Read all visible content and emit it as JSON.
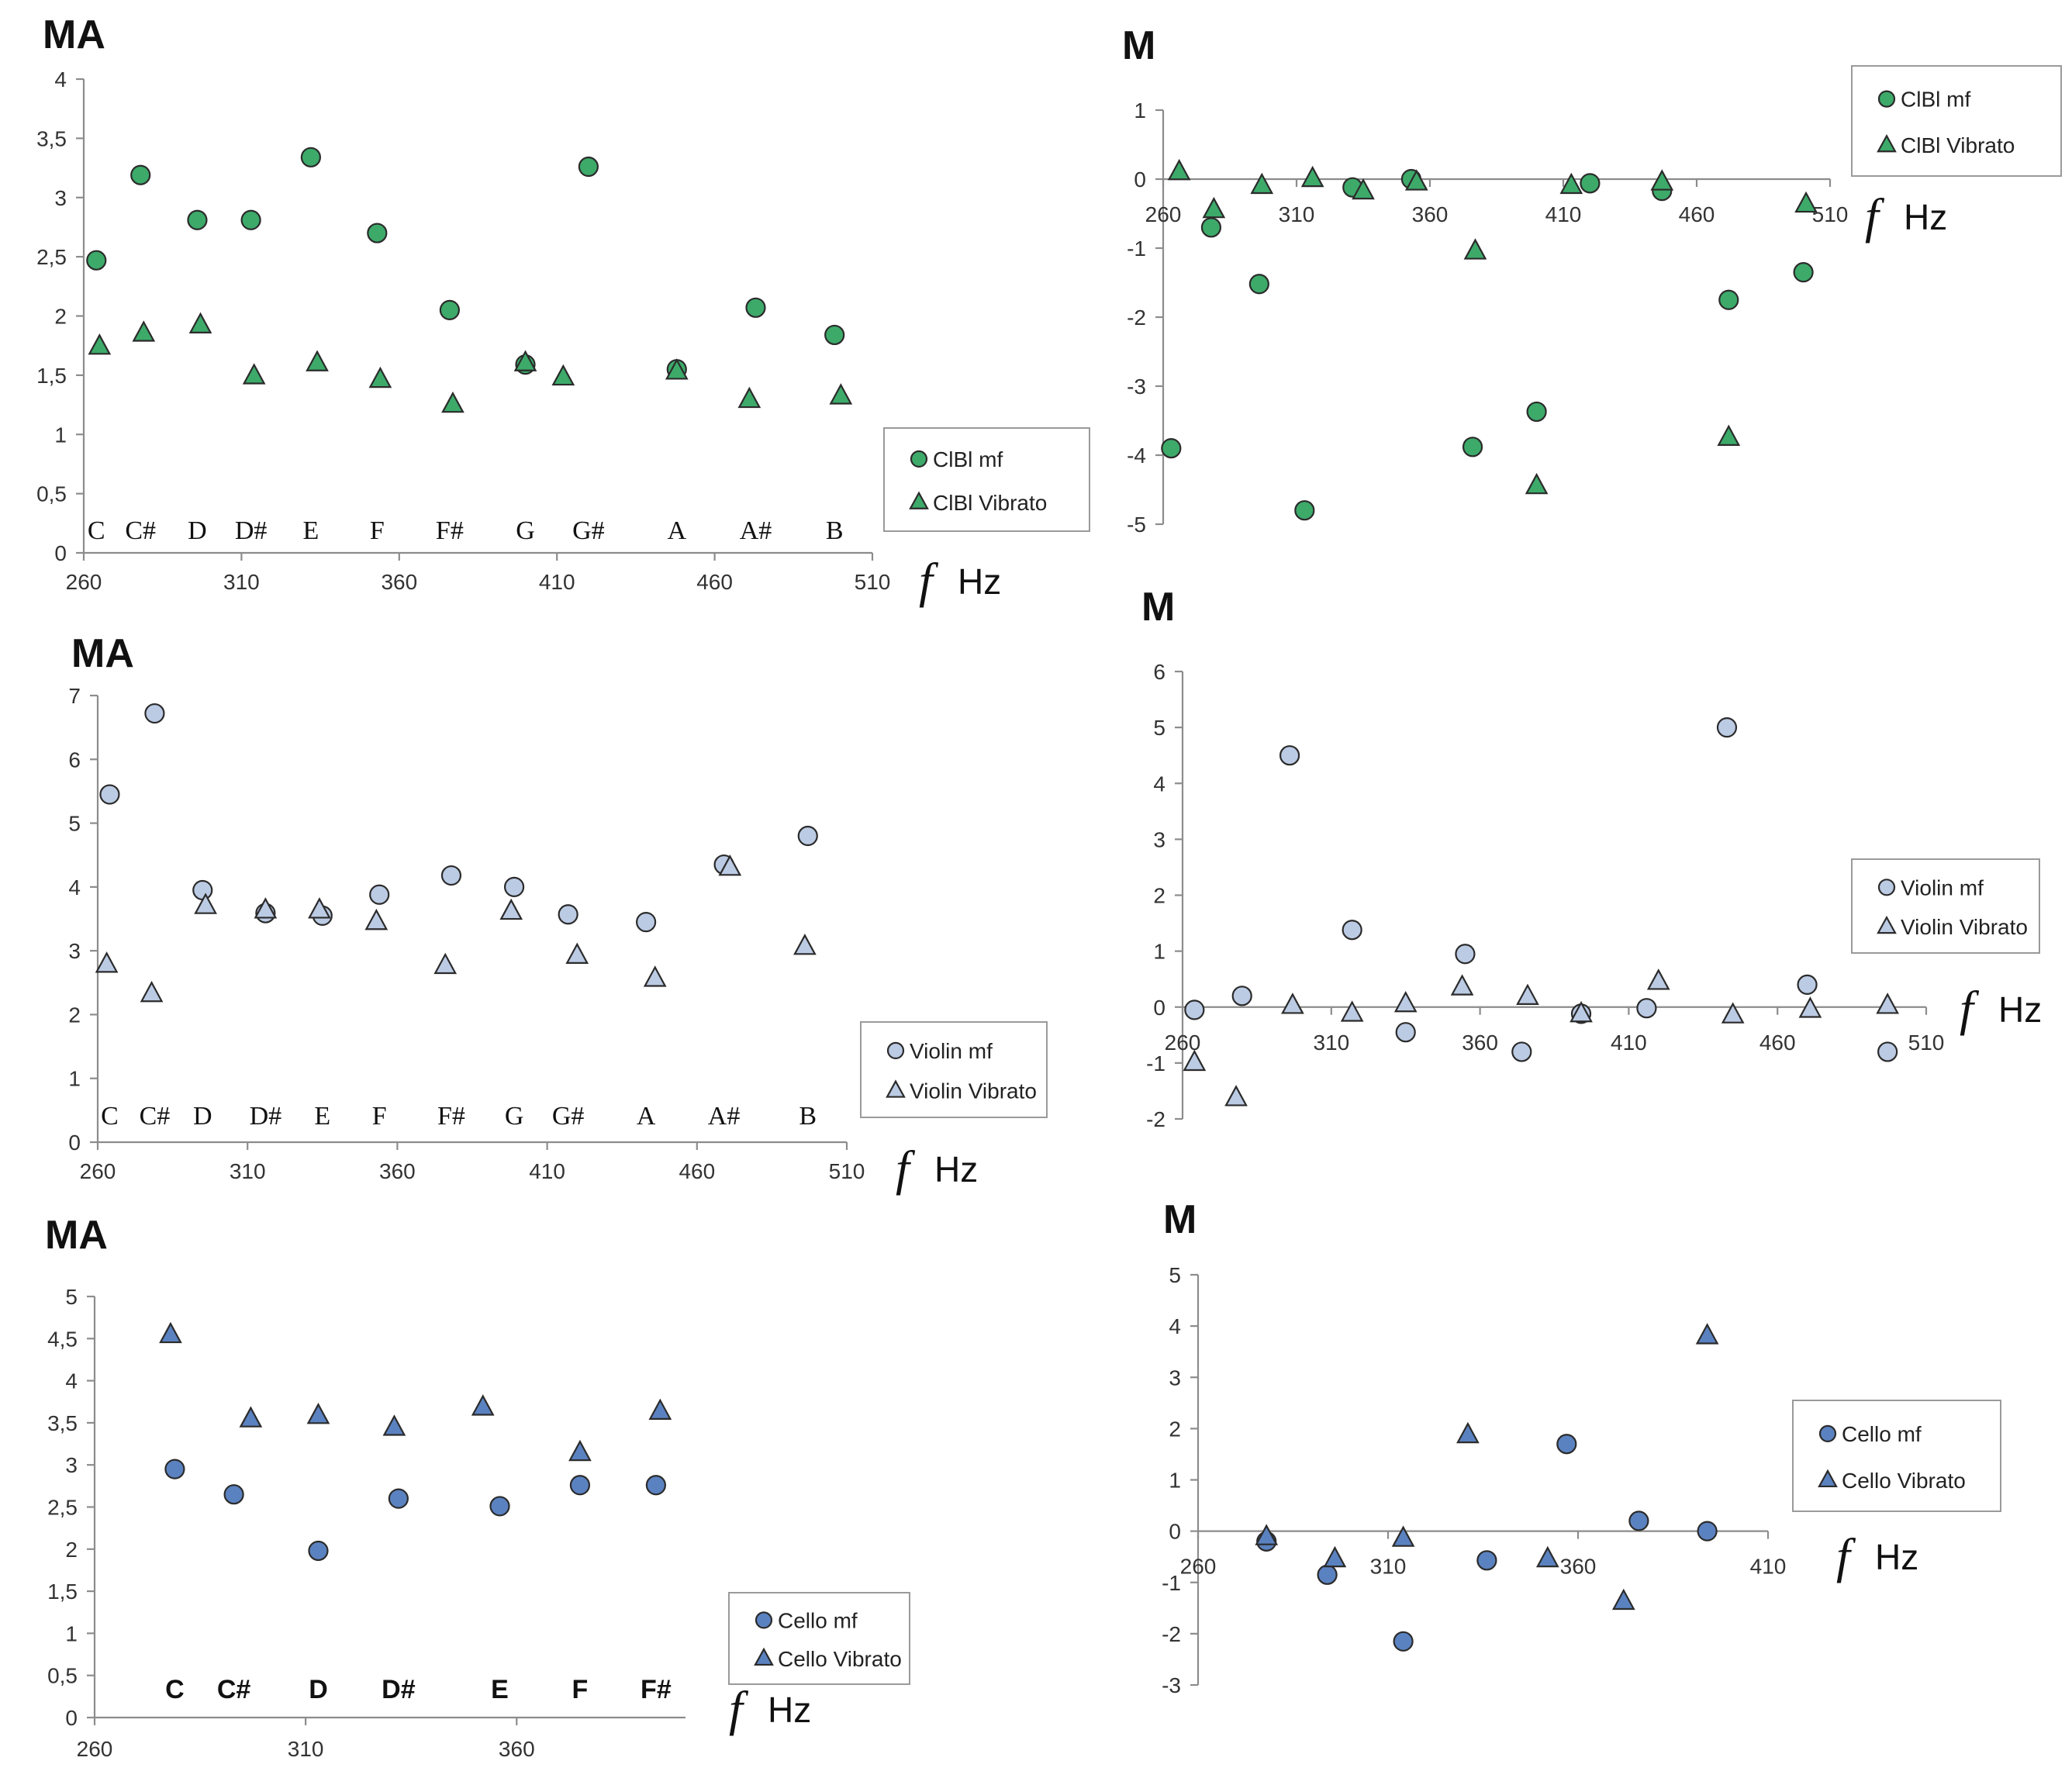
{
  "colors": {
    "clbl": "#3daa6a",
    "violin": "#bccbe4",
    "cello": "#5b82c0",
    "axis": "#8c8c8c"
  },
  "chart_data": [
    {
      "id": "clbl-ma",
      "type": "scatter",
      "title": "MA",
      "xunit_symbol": "f",
      "xunit": "Hz",
      "xticks": [
        "260",
        "310",
        "360",
        "410",
        "460",
        "510"
      ],
      "yticks": [
        "0",
        "0,5",
        "1",
        "1,5",
        "2",
        "2,5",
        "3",
        "3,5",
        "4"
      ],
      "xlim": [
        260,
        510
      ],
      "ylim": [
        0,
        4
      ],
      "notes": [
        "C",
        "C#",
        "D",
        "D#",
        "E",
        "F",
        "F#",
        "G",
        "G#",
        "A",
        "A#",
        "B"
      ],
      "series": [
        {
          "name": "ClBl mf",
          "marker": "circle",
          "color": "clbl",
          "x": [
            264,
            278,
            296,
            313,
            332,
            353,
            376,
            400,
            420,
            448,
            473,
            498
          ],
          "y": [
            2.47,
            3.19,
            2.81,
            2.81,
            3.34,
            2.7,
            2.05,
            1.59,
            3.26,
            1.55,
            2.07,
            1.84
          ]
        },
        {
          "name": "ClBl Vibrato",
          "marker": "triangle",
          "color": "clbl",
          "x": [
            265,
            279,
            297,
            314,
            334,
            354,
            377,
            400,
            412,
            448,
            471,
            500
          ],
          "y": [
            1.74,
            1.85,
            1.92,
            1.49,
            1.6,
            1.46,
            1.25,
            1.6,
            1.48,
            1.53,
            1.29,
            1.32
          ]
        }
      ],
      "legend": "right"
    },
    {
      "id": "clbl-m",
      "type": "scatter",
      "title": "M",
      "xunit_symbol": "f",
      "xunit": "Hz",
      "xticks": [
        "260",
        "310",
        "360",
        "410",
        "460",
        "510"
      ],
      "yticks": [
        "1",
        "0",
        "-1",
        "-2",
        "-3",
        "-4",
        "-5"
      ],
      "xlim": [
        260,
        510
      ],
      "ylim": [
        -5,
        1
      ],
      "series": [
        {
          "name": "ClBl mf",
          "marker": "circle",
          "color": "clbl",
          "x": [
            263,
            278,
            296,
            313,
            331,
            353,
            376,
            400,
            420,
            447,
            472,
            500
          ],
          "y": [
            -3.9,
            -0.7,
            -1.52,
            -4.8,
            -0.12,
            0.0,
            -3.88,
            -3.37,
            -0.06,
            -0.17,
            -1.75,
            -1.35
          ]
        },
        {
          "name": "ClBl Vibrato",
          "marker": "triangle",
          "color": "clbl",
          "x": [
            266,
            279,
            297,
            316,
            335,
            355,
            377,
            400,
            413,
            447,
            472,
            501
          ],
          "y": [
            0.1,
            -0.45,
            -0.1,
            0.0,
            -0.18,
            -0.05,
            -1.05,
            -4.45,
            -0.1,
            -0.05,
            -3.75,
            -0.37
          ]
        }
      ],
      "legend": "top-right"
    },
    {
      "id": "violin-ma",
      "type": "scatter",
      "title": "MA",
      "xunit_symbol": "f",
      "xunit": "Hz",
      "xticks": [
        "260",
        "310",
        "360",
        "410",
        "460",
        "510"
      ],
      "yticks": [
        "0",
        "1",
        "2",
        "3",
        "4",
        "5",
        "6",
        "7"
      ],
      "xlim": [
        260,
        510
      ],
      "ylim": [
        0,
        7
      ],
      "notes": [
        "C",
        "C#",
        "D",
        "D#",
        "E",
        "F",
        "F#",
        "G",
        "G#",
        "A",
        "A#",
        "B"
      ],
      "series": [
        {
          "name": "Violin mf",
          "marker": "circle",
          "color": "violin",
          "x": [
            264,
            279,
            295,
            316,
            335,
            354,
            378,
            399,
            417,
            443,
            469,
            497
          ],
          "y": [
            5.45,
            6.72,
            3.95,
            3.59,
            3.55,
            3.88,
            4.18,
            4.0,
            3.57,
            3.45,
            4.35,
            4.8
          ]
        },
        {
          "name": "Violin Vibrato",
          "marker": "triangle",
          "color": "violin",
          "x": [
            263,
            278,
            296,
            316,
            334,
            353,
            376,
            398,
            420,
            446,
            471,
            496
          ],
          "y": [
            2.78,
            2.32,
            3.7,
            3.63,
            3.63,
            3.45,
            2.76,
            3.61,
            2.92,
            2.56,
            4.3,
            3.06
          ]
        }
      ],
      "legend": "right"
    },
    {
      "id": "violin-m",
      "type": "scatter",
      "title": "M",
      "xunit_symbol": "f",
      "xunit": "Hz",
      "xticks": [
        "260",
        "310",
        "360",
        "410",
        "460",
        "510"
      ],
      "yticks": [
        "6",
        "5",
        "4",
        "3",
        "2",
        "1",
        "0",
        "-1",
        "-2"
      ],
      "xlim": [
        260,
        510
      ],
      "ylim": [
        -2,
        6
      ],
      "series": [
        {
          "name": "Violin mf",
          "marker": "circle",
          "color": "violin",
          "x": [
            264,
            280,
            296,
            317,
            335,
            355,
            374,
            394,
            416,
            443,
            470,
            497
          ],
          "y": [
            -0.05,
            0.2,
            4.5,
            1.38,
            -0.45,
            0.95,
            -0.8,
            -0.12,
            -0.02,
            5.0,
            0.4,
            -0.8
          ]
        },
        {
          "name": "Violin Vibrato",
          "marker": "triangle",
          "color": "violin",
          "x": [
            264,
            278,
            297,
            317,
            335,
            354,
            376,
            394,
            420,
            445,
            471,
            497
          ],
          "y": [
            -1.0,
            -1.63,
            0.02,
            -0.12,
            0.05,
            0.35,
            0.18,
            -0.13,
            0.45,
            -0.15,
            -0.05,
            0.02
          ]
        }
      ],
      "legend": "right"
    },
    {
      "id": "cello-ma",
      "type": "scatter",
      "title": "MA",
      "xunit_symbol": "f",
      "xunit": "Hz",
      "xticks": [
        "260",
        "310",
        "360"
      ],
      "yticks": [
        "0",
        "0,5",
        "1",
        "1,5",
        "2",
        "2,5",
        "3",
        "3,5",
        "4",
        "4,5",
        "5"
      ],
      "xlim": [
        260,
        400
      ],
      "ylim": [
        0,
        5
      ],
      "notes": [
        "C",
        "C#",
        "D",
        "D#",
        "E",
        "F",
        "F#"
      ],
      "series": [
        {
          "name": "Cello mf",
          "marker": "circle",
          "color": "cello",
          "x": [
            279,
            293,
            313,
            332,
            356,
            375,
            393
          ],
          "y": [
            2.95,
            2.65,
            1.98,
            2.6,
            2.51,
            2.76,
            2.76
          ]
        },
        {
          "name": "Cello Vibrato",
          "marker": "triangle",
          "color": "cello",
          "x": [
            278,
            297,
            313,
            331,
            352,
            375,
            394
          ],
          "y": [
            4.54,
            3.54,
            3.58,
            3.44,
            3.68,
            3.14,
            3.63
          ]
        }
      ],
      "legend": "right"
    },
    {
      "id": "cello-m",
      "type": "scatter",
      "title": "M",
      "xunit_symbol": "f",
      "xunit": "Hz",
      "xticks": [
        "260",
        "310",
        "360",
        "410"
      ],
      "yticks": [
        "5",
        "4",
        "3",
        "2",
        "1",
        "0",
        "-1",
        "-2",
        "-3"
      ],
      "xlim": [
        260,
        410
      ],
      "ylim": [
        -3,
        5
      ],
      "series": [
        {
          "name": "Cello mf",
          "marker": "circle",
          "color": "cello",
          "x": [
            278,
            294,
            314,
            336,
            357,
            376,
            394
          ],
          "y": [
            -0.2,
            -0.85,
            -2.15,
            -0.57,
            1.7,
            0.2,
            0.0
          ]
        },
        {
          "name": "Cello Vibrato",
          "marker": "triangle",
          "color": "cello",
          "x": [
            278,
            296,
            314,
            331,
            352,
            372,
            394
          ],
          "y": [
            -0.12,
            -0.55,
            -0.15,
            1.87,
            -0.55,
            -1.38,
            3.8
          ]
        }
      ],
      "legend": "right"
    }
  ]
}
